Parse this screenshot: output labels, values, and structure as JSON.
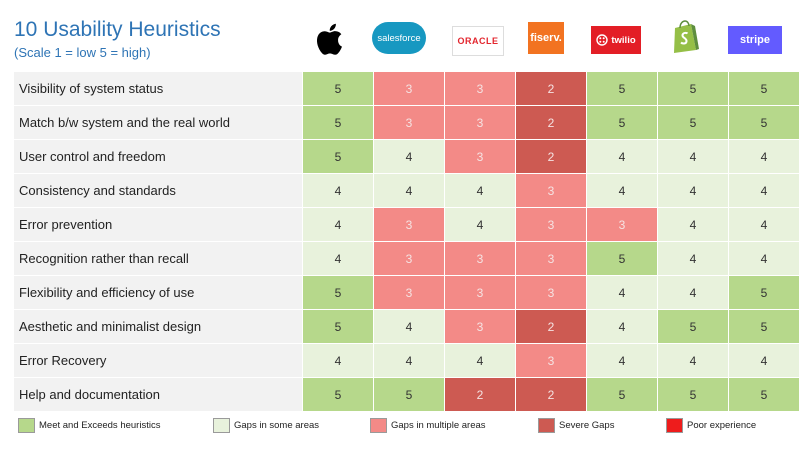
{
  "title": "10 Usability Heuristics",
  "subtitle": "(Scale 1 = low   5 = high)",
  "colors": {
    "5": "#b6d88b",
    "4": "#e8f2dc",
    "3": "#f38a87",
    "2": "#cd5a52",
    "poor": "#ee1c1c"
  },
  "companies": [
    {
      "name": "Apple",
      "icon": "apple-logo-icon",
      "text": ""
    },
    {
      "name": "Salesforce",
      "icon": "salesforce-logo-icon",
      "text": "salesforce"
    },
    {
      "name": "Oracle",
      "icon": "oracle-logo-icon",
      "text": "ORACLE"
    },
    {
      "name": "Fiserv",
      "icon": "fiserv-logo-icon",
      "text": "fiserv."
    },
    {
      "name": "Twilio",
      "icon": "twilio-logo-icon",
      "text": "twilio"
    },
    {
      "name": "Shopify",
      "icon": "shopify-logo-icon",
      "text": ""
    },
    {
      "name": "Stripe",
      "icon": "stripe-logo-icon",
      "text": "stripe"
    }
  ],
  "chart_data": {
    "type": "heatmap",
    "title": "10 Usability Heuristics",
    "subtitle": "(Scale 1 = low   5 = high)",
    "columns": [
      "Apple",
      "Salesforce",
      "Oracle",
      "Fiserv",
      "Twilio",
      "Shopify",
      "Stripe"
    ],
    "rows": [
      {
        "label": "Visibility of system status",
        "values": [
          5,
          3,
          3,
          2,
          5,
          5,
          5
        ]
      },
      {
        "label": "Match b/w system and the real world",
        "values": [
          5,
          3,
          3,
          2,
          5,
          5,
          5
        ]
      },
      {
        "label": "User control and freedom",
        "values": [
          5,
          4,
          3,
          2,
          4,
          4,
          4
        ]
      },
      {
        "label": "Consistency and standards",
        "values": [
          4,
          4,
          4,
          3,
          4,
          4,
          4
        ]
      },
      {
        "label": "Error prevention",
        "values": [
          4,
          3,
          4,
          3,
          3,
          4,
          4
        ]
      },
      {
        "label": "Recognition rather than recall",
        "values": [
          4,
          3,
          3,
          3,
          5,
          4,
          4
        ]
      },
      {
        "label": "Flexibility and efficiency of use",
        "values": [
          5,
          3,
          3,
          3,
          4,
          4,
          5
        ]
      },
      {
        "label": "Aesthetic and minimalist design",
        "values": [
          5,
          4,
          3,
          2,
          4,
          5,
          5
        ]
      },
      {
        "label": "Error Recovery",
        "values": [
          4,
          4,
          4,
          3,
          4,
          4,
          4
        ]
      },
      {
        "label": "Help and documentation",
        "values": [
          5,
          5,
          2,
          2,
          5,
          5,
          5
        ]
      }
    ],
    "legend": [
      {
        "label": "Meet and Exceeds heuristics",
        "color": "#b6d88b"
      },
      {
        "label": "Gaps in some areas",
        "color": "#e8f2dc"
      },
      {
        "label": "Gaps in multiple areas",
        "color": "#f38a87"
      },
      {
        "label": "Severe Gaps",
        "color": "#cd5a52"
      },
      {
        "label": "Poor experience",
        "color": "#ee1c1c"
      }
    ]
  }
}
